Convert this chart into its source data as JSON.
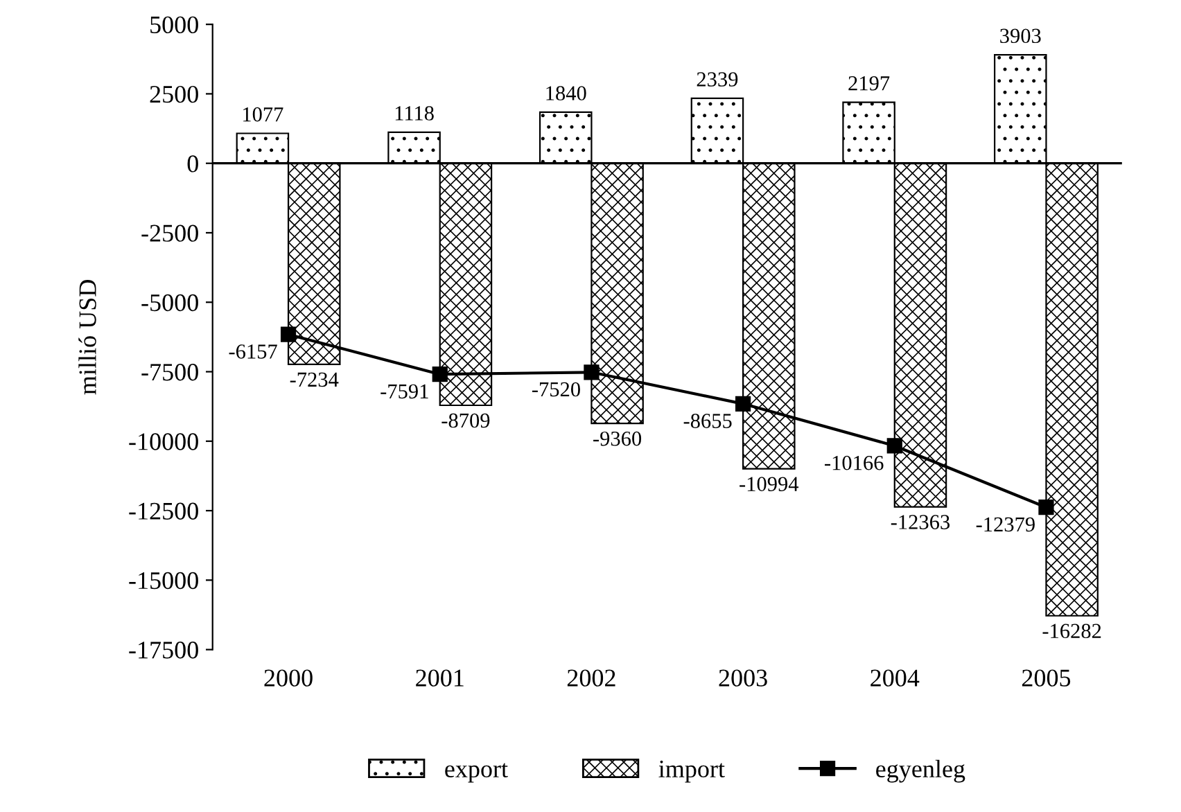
{
  "chart_data": {
    "type": "bar",
    "ylabel": "millió USD",
    "categories": [
      "2000",
      "2001",
      "2002",
      "2003",
      "2004",
      "2005"
    ],
    "series": [
      {
        "name": "export",
        "color": "#000000",
        "values": [
          1077,
          1118,
          1840,
          2339,
          2197,
          3903
        ]
      },
      {
        "name": "import",
        "color": "#000000",
        "values": [
          -7234,
          -8709,
          -9360,
          -10994,
          -12363,
          -16282
        ]
      },
      {
        "name": "egyenleg",
        "type": "line",
        "color": "#000000",
        "marker": "square",
        "values": [
          -6157,
          -7591,
          -7520,
          -8655,
          -10166,
          -12379
        ]
      }
    ],
    "ylim": [
      -17500,
      5000
    ],
    "yticks": [
      -17500,
      -15000,
      -12500,
      -10000,
      -7500,
      -5000,
      -2500,
      0,
      2500,
      5000
    ],
    "data_labels": true,
    "legend": "bottom"
  }
}
